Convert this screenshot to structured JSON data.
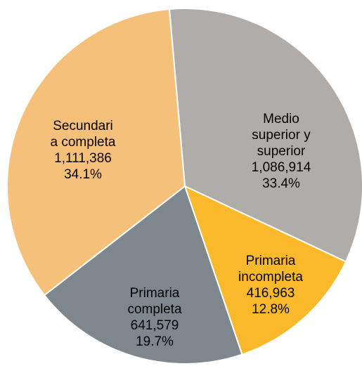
{
  "chart_data": {
    "type": "pie",
    "categories": [
      "Medio\nsuperior y\nsuperior",
      "Primaria\nincompleta",
      "Primaria\ncompleta",
      "Secundari\na completa"
    ],
    "values": [
      1086914,
      416963,
      641579,
      1111386
    ],
    "value_labels": [
      "1,086,914",
      "416,963",
      "641,579",
      "1,111,386"
    ],
    "percent_labels": [
      "33.4%",
      "12.8%",
      "19.7%",
      "34.1%"
    ],
    "colors": [
      "#b0aca9",
      "#f9b92b",
      "#7d878d",
      "#f5c07a"
    ]
  }
}
